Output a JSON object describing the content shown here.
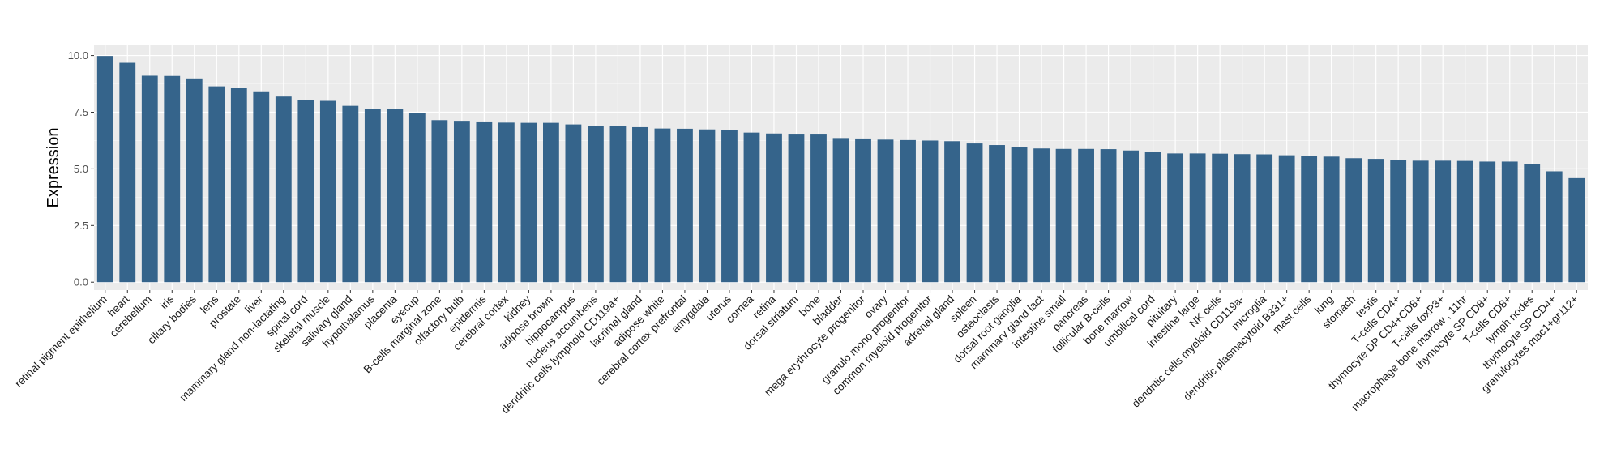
{
  "chart_data": {
    "type": "bar",
    "title": "",
    "xlabel": "",
    "ylabel": "Expression",
    "ylim": [
      -0.35,
      10.45
    ],
    "yticks": [
      0.0,
      2.5,
      5.0,
      7.5,
      10.0
    ],
    "ytick_labels": [
      "0.0",
      "2.5",
      "5.0",
      "7.5",
      "10.0"
    ],
    "grid": true,
    "legend": "none",
    "colors": {
      "bar": "#35648b",
      "panel": "#ebebeb",
      "grid_major": "#ffffff",
      "grid_minor": "#f5f5f5",
      "tick_label": "#4d4d4d"
    },
    "categories": [
      "retinal pigment epithelium",
      "heart",
      "cerebellum",
      "iris",
      "ciliary bodies",
      "lens",
      "prostate",
      "liver",
      "mammary gland non-lactating",
      "spinal cord",
      "skeletal muscle",
      "salivary gland",
      "hypothalamus",
      "placenta",
      "eyecup",
      "B-cells marginal zone",
      "olfactory bulb",
      "epidermis",
      "cerebral cortex",
      "kidney",
      "adipose brown",
      "hippocampus",
      "nucleus accumbens",
      "dendritic cells lymphoid CD119a+",
      "lacrimal gland",
      "adipose white",
      "cerebral cortex prefrontal",
      "amygdala",
      "uterus",
      "cornea",
      "retina",
      "dorsal striatum",
      "bone",
      "bladder",
      "mega erythrocyte progenitor",
      "ovary",
      "granulo mono progenitor",
      "common myeloid progenitor",
      "adrenal gland",
      "spleen",
      "osteoclasts",
      "dorsal root ganglia",
      "mammary gland  lact",
      "intestine small",
      "pancreas",
      "follicular B-cells",
      "bone marrow",
      "umbilical cord",
      "pituitary",
      "intestine large",
      "NK cells",
      "dendritic cells myeloid CD119a-",
      "microglia",
      "dendritic plasmacytoid B331+",
      "mast cells",
      "lung",
      "stomach",
      "testis",
      "T-cells CD4+",
      "thymocyte DP CD4+CD8+",
      "T-cells foxP3+",
      "macrophage bone marrow , 11hr",
      "thymocyte SP CD8+",
      "T-cells CD8+",
      "lymph nodes",
      "thymocyte SP CD4+",
      "granulocytes mac1+gr112+"
    ],
    "values": [
      9.98,
      9.68,
      9.11,
      9.1,
      8.99,
      8.64,
      8.56,
      8.42,
      8.19,
      8.04,
      8.0,
      7.78,
      7.66,
      7.65,
      7.45,
      7.15,
      7.12,
      7.09,
      7.04,
      7.03,
      7.03,
      6.96,
      6.9,
      6.9,
      6.84,
      6.78,
      6.77,
      6.74,
      6.7,
      6.6,
      6.56,
      6.55,
      6.55,
      6.36,
      6.34,
      6.29,
      6.27,
      6.25,
      6.22,
      6.12,
      6.05,
      5.97,
      5.9,
      5.88,
      5.88,
      5.87,
      5.81,
      5.75,
      5.68,
      5.68,
      5.67,
      5.65,
      5.64,
      5.6,
      5.58,
      5.54,
      5.47,
      5.44,
      5.4,
      5.36,
      5.36,
      5.35,
      5.32,
      5.32,
      5.2,
      4.89,
      4.59
    ]
  }
}
